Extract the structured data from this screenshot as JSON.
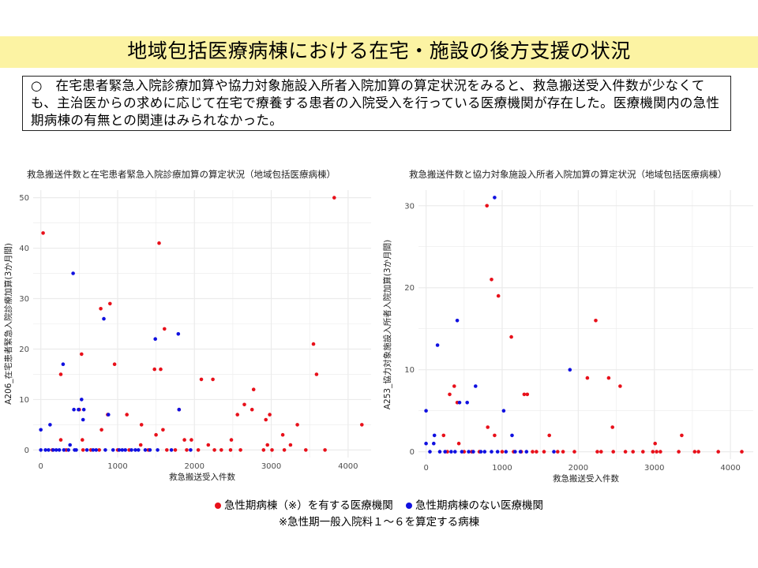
{
  "title": "地域包括医療病棟における在宅・施設の後方支援の状況",
  "summary": "○　在宅患者緊急入院診療加算や協力対象施設入所者入院加算の算定状況をみると、救急搬送受入件数が少なくても、主治医からの求めに応じて在宅で療養する患者の入院受入を行っている医療機関が存在した。医療機関内の急性期病棟の有無との関連はみられなかった。",
  "legend": {
    "with_acute": "急性期病棟（※）を有する医療機関",
    "without_acute": "急性期病棟のない医療機関"
  },
  "footnote": "※急性期一般入院料１～６を算定する病棟",
  "colors": {
    "with_acute": "#e8101a",
    "without_acute": "#1010e0",
    "grid": "#ebebeb"
  },
  "chart_data": [
    {
      "type": "scatter",
      "title": "救急搬送件数と在宅患者緊急入院診療加算の算定状況（地域包括医療病棟）",
      "xlabel": "救急搬送受入件数",
      "ylabel": "A206_在宅患者緊急入院診療加算(3か月間)",
      "xlim": [
        -100,
        4300
      ],
      "ylim": [
        -1.5,
        51.5
      ],
      "xticks": [
        0,
        1000,
        2000,
        3000,
        4000
      ],
      "yticks": [
        0,
        10,
        20,
        30,
        40,
        50
      ],
      "grid": true,
      "series": [
        {
          "name": "急性期病棟（※）を有する医療機関",
          "color": "#e8101a",
          "points": [
            [
              30,
              43
            ],
            [
              260,
              15
            ],
            [
              260,
              2
            ],
            [
              330,
              0
            ],
            [
              500,
              8
            ],
            [
              530,
              19
            ],
            [
              540,
              2
            ],
            [
              550,
              0
            ],
            [
              760,
              0
            ],
            [
              780,
              28
            ],
            [
              790,
              4
            ],
            [
              870,
              7
            ],
            [
              900,
              29
            ],
            [
              960,
              17
            ],
            [
              1120,
              7
            ],
            [
              1150,
              0
            ],
            [
              1300,
              1
            ],
            [
              1310,
              5
            ],
            [
              1480,
              16
            ],
            [
              1500,
              3
            ],
            [
              1540,
              41
            ],
            [
              1560,
              16
            ],
            [
              1590,
              4
            ],
            [
              1610,
              24
            ],
            [
              1640,
              0
            ],
            [
              1800,
              8
            ],
            [
              1870,
              2
            ],
            [
              1900,
              0
            ],
            [
              1960,
              2
            ],
            [
              2090,
              14
            ],
            [
              2180,
              1
            ],
            [
              2240,
              14
            ],
            [
              2260,
              0
            ],
            [
              2470,
              0
            ],
            [
              2480,
              2
            ],
            [
              2560,
              7
            ],
            [
              2650,
              9
            ],
            [
              2750,
              8
            ],
            [
              2770,
              12
            ],
            [
              2900,
              0
            ],
            [
              2930,
              6
            ],
            [
              2950,
              1
            ],
            [
              2980,
              7
            ],
            [
              3010,
              0
            ],
            [
              3150,
              3
            ],
            [
              3170,
              0
            ],
            [
              3250,
              1
            ],
            [
              3340,
              5
            ],
            [
              3550,
              21
            ],
            [
              3590,
              15
            ],
            [
              3820,
              50
            ],
            [
              4180,
              5
            ],
            [
              150,
              0
            ],
            [
              650,
              0
            ],
            [
              1000,
              0
            ],
            [
              1400,
              0
            ],
            [
              1750,
              0
            ],
            [
              2050,
              0
            ],
            [
              2350,
              0
            ],
            [
              2600,
              0
            ],
            [
              3450,
              0
            ],
            [
              3700,
              0
            ]
          ]
        },
        {
          "name": "急性期病棟のない医療機関",
          "color": "#1010e0",
          "points": [
            [
              0,
              4
            ],
            [
              0,
              0
            ],
            [
              120,
              5
            ],
            [
              290,
              17
            ],
            [
              420,
              35
            ],
            [
              430,
              8
            ],
            [
              440,
              0
            ],
            [
              490,
              8
            ],
            [
              530,
              10
            ],
            [
              550,
              6
            ],
            [
              560,
              8
            ],
            [
              820,
              26
            ],
            [
              880,
              7
            ],
            [
              1100,
              0
            ],
            [
              1230,
              0
            ],
            [
              1490,
              22
            ],
            [
              1790,
              23
            ],
            [
              1800,
              8
            ],
            [
              1950,
              0
            ],
            [
              60,
              0
            ],
            [
              100,
              0
            ],
            [
              160,
              0
            ],
            [
              200,
              0
            ],
            [
              240,
              0
            ],
            [
              300,
              0
            ],
            [
              360,
              0
            ],
            [
              380,
              1
            ],
            [
              460,
              0
            ],
            [
              600,
              0
            ],
            [
              680,
              0
            ],
            [
              720,
              0
            ],
            [
              840,
              0
            ],
            [
              940,
              0
            ],
            [
              1020,
              0
            ],
            [
              1060,
              0
            ],
            [
              1180,
              0
            ],
            [
              1270,
              0
            ],
            [
              1360,
              0
            ],
            [
              1420,
              0
            ],
            [
              1520,
              0
            ],
            [
              1700,
              0
            ]
          ]
        }
      ]
    },
    {
      "type": "scatter",
      "title": "救急搬送件数と協力対象施設入所者入院加算の算定状況（地域包括医療病棟）",
      "xlabel": "救急搬送受入件数",
      "ylabel": "A253_協力対象施設入所者入院加算(3か月間)",
      "xlim": [
        -100,
        4300
      ],
      "ylim": [
        -0.9,
        31.9
      ],
      "xticks": [
        0,
        1000,
        2000,
        3000,
        4000
      ],
      "yticks": [
        0,
        10,
        20,
        30
      ],
      "grid": true,
      "series": [
        {
          "name": "急性期病棟（※）を有する医療機関",
          "color": "#e8101a",
          "points": [
            [
              230,
              2
            ],
            [
              280,
              0
            ],
            [
              310,
              7
            ],
            [
              370,
              8
            ],
            [
              410,
              6
            ],
            [
              430,
              1
            ],
            [
              800,
              30
            ],
            [
              810,
              3
            ],
            [
              860,
              21
            ],
            [
              900,
              2
            ],
            [
              950,
              19
            ],
            [
              1000,
              0
            ],
            [
              1120,
              14
            ],
            [
              1250,
              0
            ],
            [
              1290,
              7
            ],
            [
              1330,
              7
            ],
            [
              1400,
              0
            ],
            [
              1450,
              0
            ],
            [
              1620,
              2
            ],
            [
              1730,
              0
            ],
            [
              1800,
              0
            ],
            [
              2120,
              9
            ],
            [
              2230,
              16
            ],
            [
              2250,
              0
            ],
            [
              2300,
              0
            ],
            [
              2400,
              9
            ],
            [
              2450,
              3
            ],
            [
              2460,
              0
            ],
            [
              2550,
              8
            ],
            [
              2620,
              0
            ],
            [
              2850,
              0
            ],
            [
              2980,
              0
            ],
            [
              3010,
              1
            ],
            [
              3030,
              0
            ],
            [
              3080,
              0
            ],
            [
              3320,
              0
            ],
            [
              3360,
              2
            ],
            [
              3530,
              0
            ],
            [
              3580,
              0
            ],
            [
              3840,
              0
            ],
            [
              4150,
              0
            ],
            [
              500,
              0
            ],
            [
              600,
              0
            ],
            [
              700,
              0
            ],
            [
              1150,
              0
            ],
            [
              1550,
              0
            ],
            [
              1950,
              0
            ],
            [
              2720,
              0
            ]
          ]
        },
        {
          "name": "急性期病棟のない医療機関",
          "color": "#1010e0",
          "points": [
            [
              0,
              5
            ],
            [
              0,
              1
            ],
            [
              100,
              1
            ],
            [
              110,
              2
            ],
            [
              150,
              13
            ],
            [
              380,
              0
            ],
            [
              410,
              16
            ],
            [
              440,
              6
            ],
            [
              540,
              6
            ],
            [
              650,
              8
            ],
            [
              900,
              31
            ],
            [
              1020,
              5
            ],
            [
              1130,
              2
            ],
            [
              1890,
              10
            ],
            [
              1050,
              0
            ],
            [
              1680,
              0
            ],
            [
              50,
              0
            ],
            [
              180,
              0
            ],
            [
              250,
              0
            ],
            [
              330,
              0
            ],
            [
              470,
              0
            ],
            [
              560,
              0
            ],
            [
              620,
              0
            ],
            [
              720,
              0
            ],
            [
              770,
              0
            ],
            [
              860,
              0
            ],
            [
              940,
              0
            ],
            [
              1170,
              0
            ],
            [
              1240,
              0
            ],
            [
              1320,
              0
            ]
          ]
        }
      ]
    }
  ]
}
